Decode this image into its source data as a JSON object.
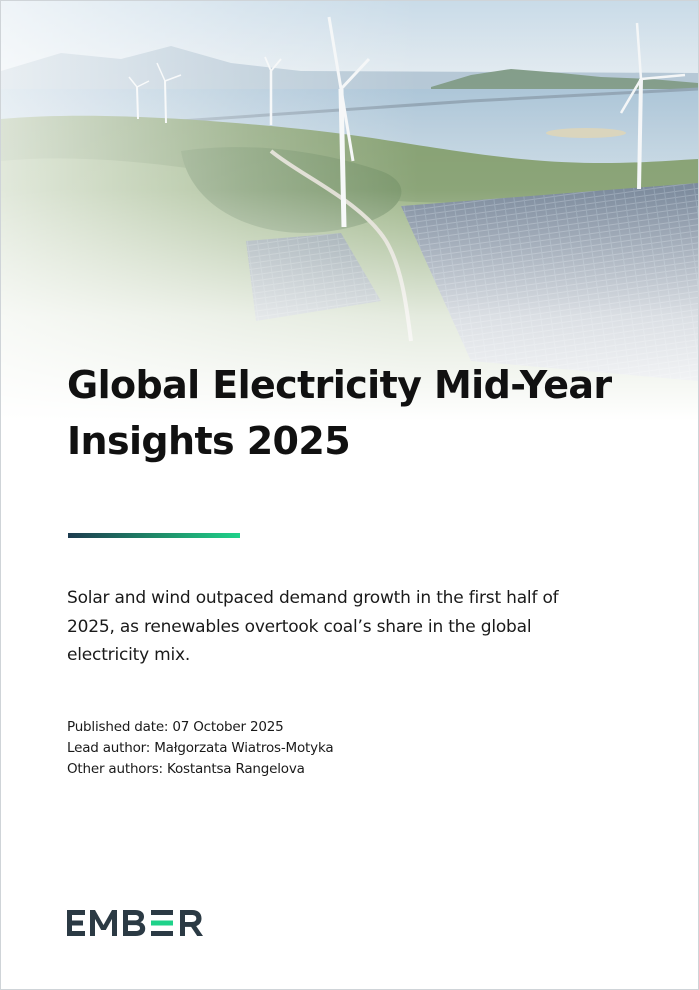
{
  "document": {
    "title_lines": [
      "Global Electricity Mid-Year",
      "Insights 2025"
    ],
    "summary_lines": [
      "Solar and wind outpaced demand growth in the first half of",
      "2025, as renewables overtook coal’s share in the global",
      "electricity mix."
    ],
    "published_date": "Published date: 07 October 2025",
    "lead_author": "Lead author: Małgorzata Wiatros-Motyka",
    "other_authors": "Other authors: Kostantsa Rangelova"
  },
  "brand": {
    "logo_text": "EMBER",
    "logo_color": "#2b3a44",
    "accent_color": "#1fd28a"
  },
  "colors": {
    "accent_gradient_start": "#1d3b4f",
    "accent_gradient_end": "#1fd28a"
  }
}
